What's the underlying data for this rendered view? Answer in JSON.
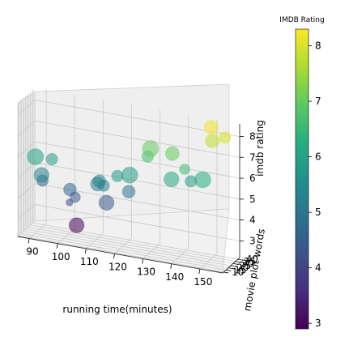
{
  "chart_data": {
    "type": "scatter",
    "dimensions": "3d",
    "title": "",
    "xlabel": "running time(minutes)",
    "ylabel": "movie plot words",
    "zlabel": "imdb rating",
    "xlim": [
      86,
      158
    ],
    "ylim": [
      8,
      44
    ],
    "zlim": [
      2.2,
      8.6
    ],
    "xticks": [
      "90",
      "100",
      "110",
      "120",
      "130",
      "140",
      "150"
    ],
    "yticks": [
      "10",
      "15",
      "20",
      "25",
      "30",
      "35",
      "40"
    ],
    "zticks": [
      "3",
      "4",
      "5",
      "6",
      "7",
      "8"
    ],
    "grid": true,
    "colorbar": {
      "label": "IMDB Rating",
      "colormap": "viridis",
      "range": [
        2.9,
        8.3
      ],
      "ticks": [
        "3",
        "4",
        "5",
        "6",
        "7",
        "8"
      ]
    },
    "points": [
      {
        "x": 91,
        "y": 15,
        "z": 6.0,
        "size": 14
      },
      {
        "x": 96,
        "y": 20,
        "z": 5.9,
        "size": 10
      },
      {
        "x": 94,
        "y": 10,
        "z": 5.3,
        "size": 13
      },
      {
        "x": 92,
        "y": 24,
        "z": 4.7,
        "size": 10
      },
      {
        "x": 103,
        "y": 16,
        "z": 4.7,
        "size": 11
      },
      {
        "x": 105,
        "y": 15,
        "z": 4.4,
        "size": 9
      },
      {
        "x": 103,
        "y": 15,
        "z": 4.1,
        "size": 6
      },
      {
        "x": 113,
        "y": 18,
        "z": 5.3,
        "size": 11
      },
      {
        "x": 112,
        "y": 20,
        "z": 5.1,
        "size": 12
      },
      {
        "x": 115,
        "y": 15,
        "z": 5.2,
        "size": 10
      },
      {
        "x": 120,
        "y": 14,
        "z": 5.8,
        "size": 10
      },
      {
        "x": 124,
        "y": 16,
        "z": 5.9,
        "size": 14
      },
      {
        "x": 123,
        "y": 20,
        "z": 5.0,
        "size": 11
      },
      {
        "x": 116,
        "y": 15,
        "z": 4.4,
        "size": 13
      },
      {
        "x": 103,
        "y": 30,
        "z": 2.7,
        "size": 13
      },
      {
        "x": 128,
        "y": 30,
        "z": 6.6,
        "size": 10
      },
      {
        "x": 129,
        "y": 30,
        "z": 7.0,
        "size": 14
      },
      {
        "x": 137,
        "y": 28,
        "z": 7.0,
        "size": 12
      },
      {
        "x": 139,
        "y": 14,
        "z": 6.1,
        "size": 13
      },
      {
        "x": 143,
        "y": 18,
        "z": 6.6,
        "size": 9
      },
      {
        "x": 144,
        "y": 25,
        "z": 5.9,
        "size": 10
      },
      {
        "x": 149,
        "y": 20,
        "z": 6.2,
        "size": 14
      },
      {
        "x": 150,
        "y": 34,
        "z": 7.8,
        "size": 12
      },
      {
        "x": 148,
        "y": 44,
        "z": 8.2,
        "size": 12
      },
      {
        "x": 154,
        "y": 37,
        "z": 8.0,
        "size": 10
      }
    ]
  }
}
